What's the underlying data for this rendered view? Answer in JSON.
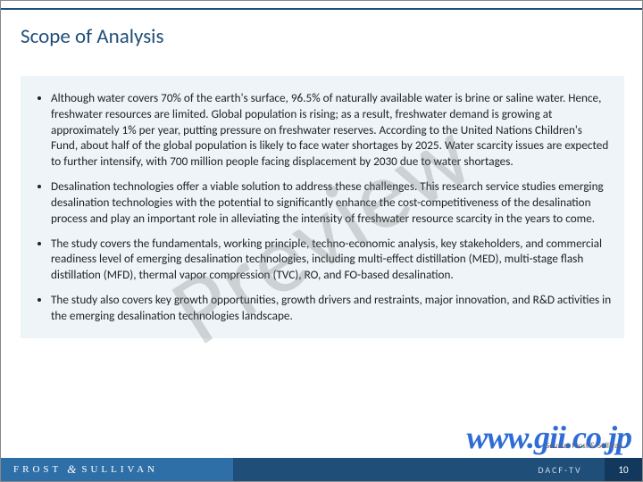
{
  "title": "Scope of Analysis",
  "watermark": "Preview",
  "bullets": [
    "Although water covers 70% of the earth's surface, 96.5% of naturally available water is brine or saline water. Hence, freshwater resources are limited. Global population is rising; as a result, freshwater demand is growing at approximately 1% per year, putting pressure on freshwater reserves. According to the United Nations Children's Fund, about half of the global population is likely to face water shortages by 2025. Water scarcity issues are expected to further intensify, with 700 million people facing displacement by 2030 due to water shortages.",
    "Desalination technologies offer a viable solution to address these challenges. This research service studies emerging desalination technologies with the potential to significantly enhance the cost-competitiveness of the desalination process and play an important role in alleviating the intensity of freshwater resource scarcity in the years to come.",
    "The study covers the fundamentals, working principle, techno-economic analysis, key stakeholders, and commercial readiness level of emerging desalination technologies, including multi-effect distillation (MED), multi-stage flash distillation (MFD), thermal vapor compression (TVC), RO, and FO-based desalination.",
    "The study also covers key growth opportunities, growth drivers and restraints, major innovation, and R&D activities in the emerging desalination technologies landscape."
  ],
  "source": "Source: Frost & Sullivan",
  "site_url": "www.gii.co.jp",
  "footer": {
    "brand_left": "FROST",
    "brand_amp": "&",
    "brand_right": "SULLIVAN",
    "code": "DACF-TV",
    "page": "10"
  },
  "colors": {
    "accent": "#1f4e79",
    "content_bg": "#eef4f8",
    "footer_left": "#2f6fa7",
    "footer_mid": "#1f4e79",
    "footer_page": "#12385e",
    "url": "#2f6cd6"
  }
}
